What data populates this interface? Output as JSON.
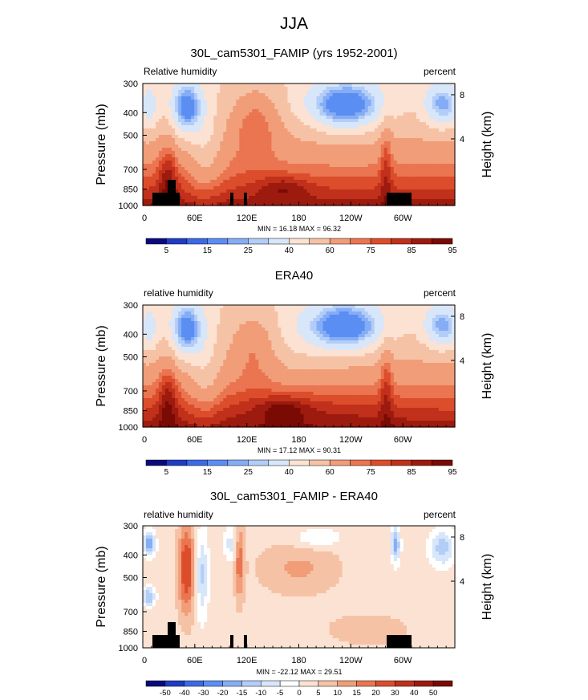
{
  "figure": {
    "title": "JJA"
  },
  "chart_data": [
    {
      "type": "heatmap",
      "title": "30L_cam5301_FAMIP (yrs 1952-2001)",
      "left_label": "Relative humidity",
      "right_label": "percent",
      "ylabel": "Pressure (mb)",
      "y2label": "Height (km)",
      "x_ticks": [
        "0",
        "60E",
        "120E",
        "180",
        "120W",
        "60W"
      ],
      "y_ticks": [
        "300",
        "400",
        "500",
        "700",
        "850",
        "1000"
      ],
      "y2_ticks": [
        "8",
        "4"
      ],
      "stats": "MIN = 16.18   MAX = 96.32",
      "min": 16.18,
      "max": 96.32,
      "colorbar_labels": [
        "5",
        "15",
        "25",
        "40",
        "60",
        "75",
        "85",
        "95"
      ],
      "colorbar_levels": [
        5,
        10,
        15,
        20,
        25,
        30,
        40,
        50,
        60,
        70,
        75,
        80,
        85,
        90,
        95
      ],
      "colors": [
        "#0a0a7e",
        "#1f3cc2",
        "#3b6ae6",
        "#5b8ef3",
        "#85adf6",
        "#b2cdf8",
        "#d8e6fa",
        "#fbe2d2",
        "#f6c2a6",
        "#f19d78",
        "#ea7550",
        "#dc4d2c",
        "#c0301a",
        "#9c1a0e",
        "#7a0a04"
      ],
      "land_mask": true
    },
    {
      "type": "heatmap",
      "title": "ERA40",
      "left_label": "relative humidity",
      "right_label": "percent",
      "ylabel": "Pressure (mb)",
      "y2label": "Height (km)",
      "x_ticks": [
        "0",
        "60E",
        "120E",
        "180",
        "120W",
        "60W"
      ],
      "y_ticks": [
        "300",
        "400",
        "500",
        "700",
        "850",
        "1000"
      ],
      "y2_ticks": [
        "8",
        "4"
      ],
      "stats": "MIN = 17.12   MAX = 90.31",
      "min": 17.12,
      "max": 90.31,
      "colorbar_labels": [
        "5",
        "15",
        "25",
        "40",
        "60",
        "75",
        "85",
        "95"
      ],
      "colorbar_levels": [
        5,
        10,
        15,
        20,
        25,
        30,
        40,
        50,
        60,
        70,
        75,
        80,
        85,
        90,
        95
      ],
      "colors": [
        "#0a0a7e",
        "#1f3cc2",
        "#3b6ae6",
        "#5b8ef3",
        "#85adf6",
        "#b2cdf8",
        "#d8e6fa",
        "#fbe2d2",
        "#f6c2a6",
        "#f19d78",
        "#ea7550",
        "#dc4d2c",
        "#c0301a",
        "#9c1a0e",
        "#7a0a04"
      ],
      "land_mask": false
    },
    {
      "type": "heatmap",
      "title": "30L_cam5301_FAMIP - ERA40",
      "left_label": "relative humidity",
      "right_label": "percent",
      "ylabel": "Pressure (mb)",
      "y2label": "Height (km)",
      "x_ticks": [
        "0",
        "60E",
        "120E",
        "180",
        "120W",
        "60W"
      ],
      "y_ticks": [
        "300",
        "400",
        "500",
        "700",
        "850",
        "1000"
      ],
      "y2_ticks": [
        "8",
        "4"
      ],
      "stats": "MIN = -22.12   MAX = 29.51",
      "min": -22.12,
      "max": 29.51,
      "colorbar_labels": [
        "-50",
        "-40",
        "-30",
        "-20",
        "-15",
        "-10",
        "-5",
        "0",
        "5",
        "10",
        "15",
        "20",
        "30",
        "40",
        "50"
      ],
      "colorbar_levels": [
        -50,
        -40,
        -30,
        -20,
        -15,
        -10,
        -5,
        0,
        5,
        10,
        15,
        20,
        30,
        40,
        50
      ],
      "colors": [
        "#0a0a7e",
        "#1f3cc2",
        "#3b6ae6",
        "#5b8ef3",
        "#85adf6",
        "#b2cdf8",
        "#d8e6fa",
        "#ffffff",
        "#fbe2d2",
        "#f6c2a6",
        "#f19d78",
        "#ea7550",
        "#dc4d2c",
        "#c0301a",
        "#9c1a0e",
        "#7a0a04"
      ],
      "land_mask": true
    }
  ]
}
